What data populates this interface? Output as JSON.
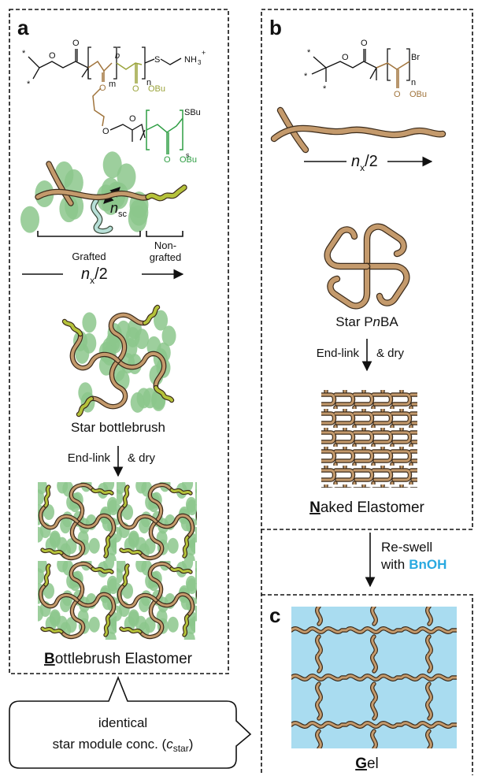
{
  "panel_a": {
    "label": "a",
    "structure_labels": [
      "*",
      "*",
      "O",
      "O",
      "b",
      "m",
      "n",
      "S",
      "NH",
      "3",
      "+",
      "O",
      "O",
      "OBu",
      "O",
      "O",
      "SBu",
      "s",
      "O",
      "OBu"
    ],
    "n_sc": {
      "base": "n",
      "sub": "sc"
    },
    "grafted": "Grafted",
    "non_grafted": [
      "Non-",
      "grafted"
    ],
    "length": {
      "base": "n",
      "sub": "x",
      "rest": "/2"
    },
    "star": "Star bottlebrush",
    "step": {
      "left": "End-link",
      "right": "& dry"
    },
    "product": {
      "initial": "B",
      "rest": "ottlebrush Elastomer"
    }
  },
  "panel_b": {
    "label": "b",
    "structure_labels": [
      "*",
      "*",
      "*",
      "O",
      "O",
      "Br",
      "n",
      "O",
      "OBu"
    ],
    "length": {
      "base": "n",
      "sub": "x",
      "rest": "/2"
    },
    "star": {
      "pre": "Star P",
      "italic": "n",
      "post": "BA"
    },
    "step": {
      "left": "End-link",
      "right": "& dry"
    },
    "product": {
      "initial": "N",
      "rest": "aked Elastomer"
    }
  },
  "transition": {
    "line1": "Re-swell",
    "line2": "with",
    "solvent": "BnOH"
  },
  "panel_c": {
    "label": "c",
    "product": {
      "initial": "G",
      "rest": "el"
    }
  },
  "callout": {
    "line1": "identical",
    "line2": "star module conc. (",
    "var": "c",
    "sub": "star",
    "close": ")"
  }
}
